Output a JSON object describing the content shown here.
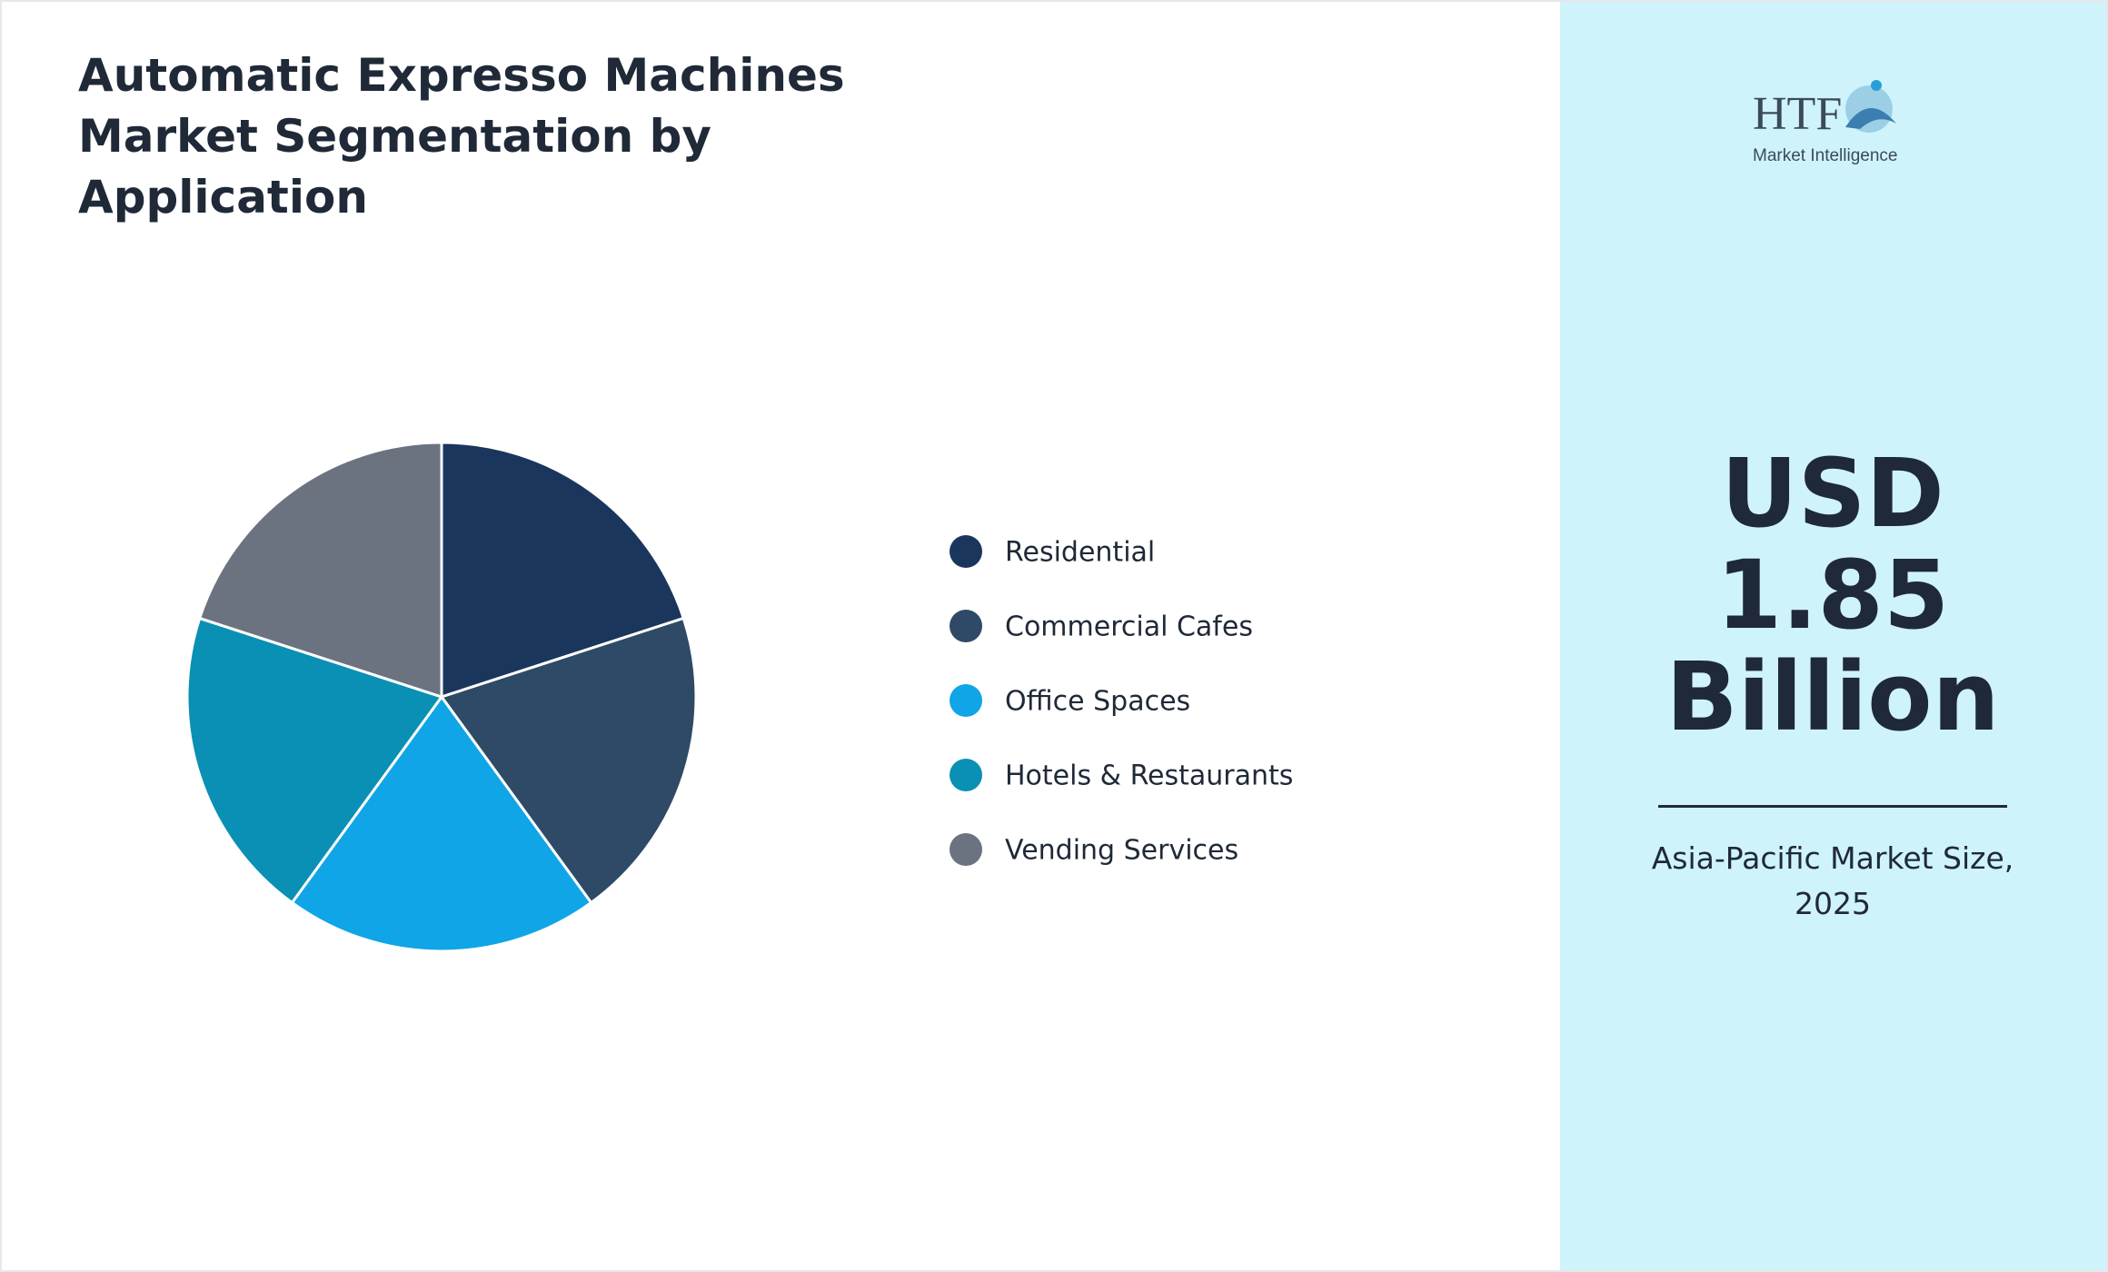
{
  "chart_data": {
    "type": "pie",
    "title": "Automatic Expresso Machines Market Segmentation by Application",
    "categories": [
      "Residential",
      "Commercial Cafes",
      "Office Spaces",
      "Hotels & Restaurants",
      "Vending Services"
    ],
    "values": [
      20,
      20,
      20,
      20,
      20
    ],
    "colors": [
      "#1b365d",
      "#2e4a66",
      "#10a5e6",
      "#0a90b4",
      "#6b7280"
    ],
    "legend": "right"
  },
  "highlight": {
    "value": "USD 1.85 Billion",
    "caption": "Asia-Pacific Market Size, 2025"
  },
  "logo": {
    "name": "HTF",
    "tagline": "Market Intelligence"
  }
}
